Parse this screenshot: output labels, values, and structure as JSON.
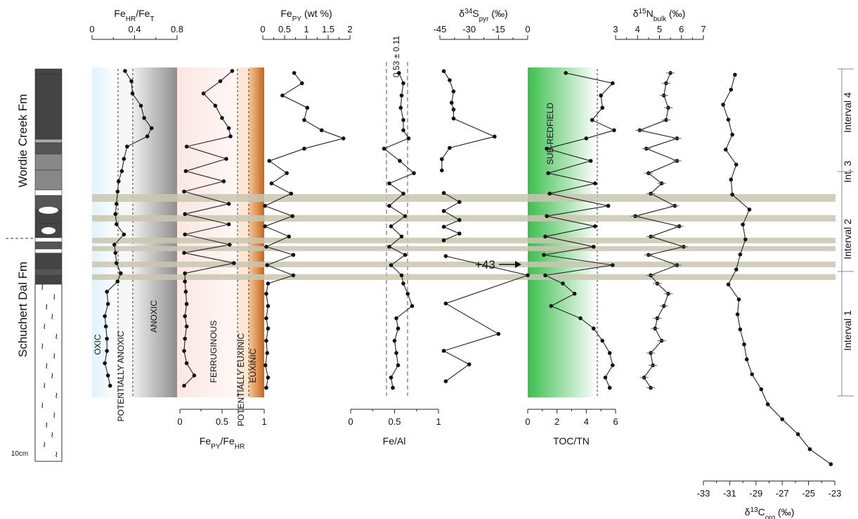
{
  "figure": {
    "formations": [
      "Wordie Creek Fm",
      "Schuchert Dal Fm"
    ],
    "scale_label": "10cm",
    "intervals": [
      "Interval 4",
      "Int. 3",
      "Interval 2",
      "Interval 1"
    ],
    "annotations": {
      "arrow_label": "+43",
      "fe_al_label": "0.53 ± 0.11"
    },
    "zone_labels": [
      "OXIC",
      "POTENTIALLY ANOXIC",
      "ANOXIC",
      "FERRUGINOUS",
      "POTENTIALLY EUXINIC",
      "EUXINIC",
      "SUB-REDFIELD"
    ],
    "colors": {
      "oxic": "#dff3fb",
      "anoxic": "#8e8e8e",
      "ferruginous": "#fbe6e2",
      "euxinic": "#c8661c",
      "subredfield": "#3cbf4e",
      "horizon_band": "#c9c6b0"
    }
  },
  "chart_data": [
    {
      "type": "line",
      "xlabel": "FeHR/FeT",
      "xlim": [
        0,
        0.8
      ],
      "ticks": [
        "0",
        "0.4",
        "0.8"
      ],
      "y": [
        1,
        6,
        12,
        18,
        24,
        29,
        33,
        38,
        44,
        50,
        55,
        60,
        66,
        71,
        76,
        81,
        86,
        90,
        95,
        100,
        104,
        109,
        115,
        121,
        126,
        132,
        138,
        144,
        150,
        155
      ],
      "x": [
        0.31,
        0.37,
        0.38,
        0.46,
        0.49,
        0.56,
        0.52,
        0.33,
        0.3,
        0.28,
        0.25,
        0.24,
        0.23,
        0.22,
        0.23,
        0.3,
        0.21,
        0.22,
        0.23,
        0.27,
        0.24,
        0.14,
        0.15,
        0.12,
        0.13,
        0.14,
        0.14,
        0.12,
        0.15,
        0.17
      ]
    },
    {
      "type": "line",
      "xlabel": "FePY/FeHR",
      "xlim": [
        0,
        1
      ],
      "ticks": [
        "0",
        "0.5",
        "1"
      ],
      "y": [
        1,
        6,
        12,
        18,
        24,
        29,
        33,
        38,
        44,
        50,
        55,
        60,
        66,
        71,
        76,
        81,
        86,
        90,
        95,
        100,
        104,
        109,
        115,
        121,
        126,
        132,
        138,
        144,
        150,
        155
      ],
      "x": [
        0.62,
        0.48,
        0.28,
        0.42,
        0.5,
        0.58,
        0.6,
        0.08,
        0.55,
        0.07,
        0.52,
        0.05,
        0.58,
        0.06,
        0.58,
        0.06,
        0.59,
        0.05,
        0.64,
        0.06,
        0.06,
        0.07,
        0.08,
        0.06,
        0.08,
        0.06,
        0.05,
        0.08,
        0.17,
        0.05
      ]
    },
    {
      "type": "line",
      "xlabel": "FePY (wt %)",
      "xlim": [
        0,
        2
      ],
      "ticks": [
        "0",
        "0.5",
        "1",
        "1.5",
        "2"
      ],
      "y": [
        2,
        7,
        13,
        19,
        25,
        30,
        34,
        39,
        45,
        51,
        56,
        61,
        67,
        72,
        77,
        82,
        87,
        91,
        96,
        101,
        105,
        110,
        116,
        122,
        127,
        133,
        139,
        145,
        151,
        156
      ],
      "x": [
        0.72,
        0.9,
        0.45,
        1.02,
        0.95,
        1.35,
        1.85,
        0.95,
        0.15,
        0.55,
        0.2,
        0.65,
        0.05,
        0.68,
        0.05,
        0.6,
        0.08,
        0.7,
        0.1,
        0.7,
        0.12,
        0.08,
        0.12,
        0.08,
        0.12,
        0.08,
        0.1,
        0.06,
        0.12,
        0.08
      ]
    },
    {
      "type": "line",
      "xlabel": "Fe/Al",
      "xlim": [
        0,
        1
      ],
      "ticks": [
        "0",
        "0.5",
        "1"
      ],
      "y": [
        2,
        7,
        13,
        19,
        25,
        30,
        34,
        39,
        45,
        51,
        56,
        61,
        67,
        72,
        77,
        82,
        87,
        91,
        96,
        101,
        105,
        110,
        116,
        122,
        127,
        133,
        139,
        145,
        151,
        156
      ],
      "x": [
        0.55,
        0.6,
        0.58,
        0.57,
        0.6,
        0.6,
        0.66,
        0.38,
        0.56,
        0.72,
        0.44,
        0.6,
        0.44,
        0.62,
        0.46,
        0.58,
        0.44,
        0.62,
        0.46,
        0.58,
        0.6,
        0.65,
        0.7,
        0.52,
        0.54,
        0.5,
        0.52,
        0.54,
        0.46,
        0.48
      ]
    },
    {
      "type": "line",
      "xlabel": "δ34Spyr (‰)",
      "xlim": [
        -45,
        0
      ],
      "ticks": [
        "-45",
        "-30",
        "-15",
        "0"
      ],
      "y": [
        2,
        10,
        20,
        30,
        36,
        44,
        60,
        70,
        80,
        90
      ],
      "x": [
        -43,
        -40,
        -38,
        -39,
        -38,
        -38,
        -17,
        -40,
        -44,
        -44
      ],
      "segments": [
        {
          "y": [
            2,
            10,
            20,
            30,
            36,
            44,
            60,
            70,
            80,
            90
          ],
          "x": [
            -43,
            -40,
            -38,
            -39,
            -38,
            -38,
            -17,
            -40,
            -44,
            -44
          ]
        },
        {
          "y": [
            110,
            118,
            126,
            134,
            140,
            146,
            152
          ],
          "x": [
            -43,
            -35,
            -43,
            -35,
            -43,
            -35,
            -43
          ]
        },
        {
          "y": [
            166,
            183,
            208,
            235,
            250,
            262,
            277
          ],
          "x": [
            -42,
            0,
            -42,
            -15,
            -43,
            -30,
            -42
          ]
        }
      ]
    },
    {
      "type": "line",
      "xlabel": "TOC/TN",
      "xlim": [
        0,
        6
      ],
      "ticks": [
        "0",
        "2",
        "4",
        "6"
      ],
      "y": [
        2,
        7,
        13,
        19,
        25,
        30,
        34,
        39,
        45,
        51,
        56,
        61,
        67,
        72,
        77,
        82,
        87,
        91,
        96,
        101,
        105,
        110,
        116,
        122,
        127,
        133,
        139,
        145,
        151,
        156
      ],
      "x": [
        2.6,
        5.8,
        5.0,
        5.1,
        4.4,
        5.9,
        4.0,
        1.3,
        4.3,
        1.4,
        4.6,
        1.5,
        5.5,
        1.3,
        4.6,
        1.2,
        4.5,
        1.1,
        5.8,
        1.2,
        2.4,
        3.2,
        1.6,
        3.6,
        4.5,
        5.1,
        5.6,
        5.8,
        5.3,
        5.6
      ]
    },
    {
      "type": "line",
      "xlabel": "δ15Nbulk (‰)",
      "xlim": [
        3,
        7
      ],
      "ticks": [
        "3",
        "4",
        "5",
        "6",
        "7"
      ],
      "y": [
        2,
        7,
        13,
        19,
        25,
        30,
        34,
        39,
        45,
        51,
        56,
        61,
        67,
        72,
        77,
        82,
        87,
        91,
        96,
        101,
        105,
        110,
        116,
        122,
        127,
        133,
        139,
        145,
        151,
        156
      ],
      "x": [
        5.5,
        5.3,
        5.2,
        5.4,
        5.3,
        4.1,
        5.8,
        4.4,
        5.8,
        4.5,
        5.1,
        4.6,
        5.7,
        3.9,
        5.9,
        4.6,
        6.1,
        4.5,
        5.8,
        4.6,
        4.9,
        5.4,
        5.2,
        4.9,
        4.8,
        5.1,
        4.6,
        4.7,
        4.3,
        4.6
      ]
    },
    {
      "type": "line",
      "xlabel": "δ13Corg (‰)",
      "xlim": [
        -33,
        -23
      ],
      "ticks": [
        "-33",
        "-31",
        "-29",
        "-27",
        "-25",
        "-23"
      ],
      "y": [
        2,
        12,
        22,
        32,
        42,
        52,
        62,
        72,
        82,
        92,
        102,
        112,
        122,
        132,
        142,
        152,
        162,
        172,
        182,
        192,
        202,
        212,
        222,
        232,
        242,
        252,
        262
      ],
      "x": [
        -30.6,
        -30.9,
        -31.5,
        -31.1,
        -30.8,
        -31.3,
        -30.5,
        -30.9,
        -30.8,
        -29.5,
        -30.0,
        -29.8,
        -30.2,
        -30.5,
        -31.1,
        -30.3,
        -30.4,
        -30.2,
        -29.9,
        -29.7,
        -29.3,
        -28.6,
        -28.1,
        -27.0,
        -25.8,
        -24.9,
        -23.3
      ]
    }
  ]
}
